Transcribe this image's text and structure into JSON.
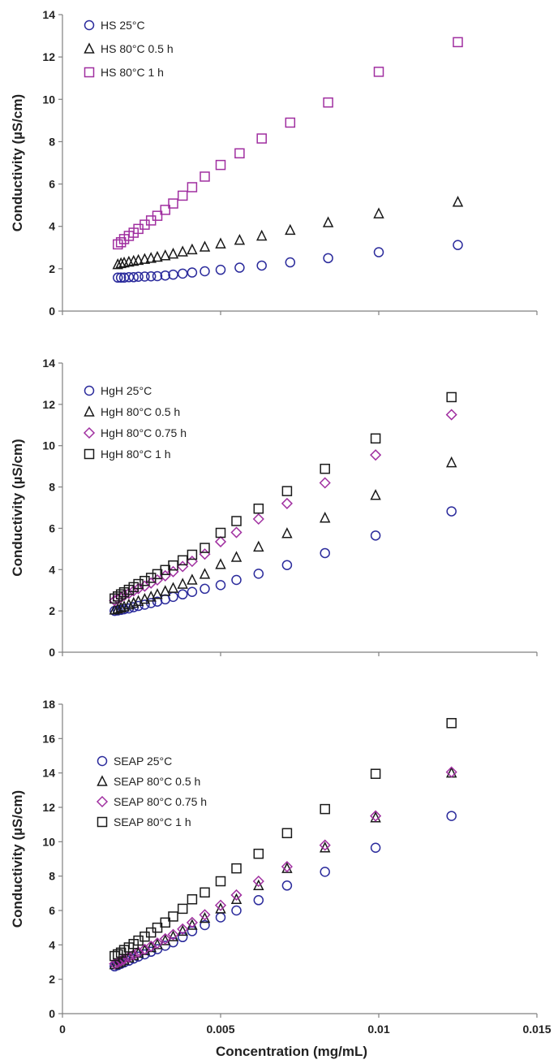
{
  "colors": {
    "blue": "#2b2b9c",
    "black": "#1a1a1a",
    "purple": "#a02fa0"
  },
  "chart_data": [
    {
      "type": "scatter",
      "title": "",
      "ylabel": "Conductivity (µS/cm)",
      "xlabel": "",
      "xlim": [
        0,
        0.015
      ],
      "ylim": [
        0,
        14
      ],
      "yticks": [
        0,
        2,
        4,
        6,
        8,
        10,
        12,
        14
      ],
      "xticks": [
        0,
        0.005,
        0.01,
        0.015
      ],
      "show_xtick_labels": false,
      "legend_position": "top-left",
      "series": [
        {
          "name": "HS 25°C",
          "marker": "circle",
          "color": "#2b2b9c",
          "x": [
            0.00175,
            0.00185,
            0.00195,
            0.0021,
            0.00225,
            0.0024,
            0.0026,
            0.0028,
            0.003,
            0.00325,
            0.0035,
            0.0038,
            0.0041,
            0.0045,
            0.005,
            0.0056,
            0.0063,
            0.0072,
            0.0084,
            0.01,
            0.0125
          ],
          "y": [
            1.58,
            1.58,
            1.58,
            1.6,
            1.6,
            1.62,
            1.63,
            1.64,
            1.65,
            1.68,
            1.72,
            1.77,
            1.82,
            1.88,
            1.95,
            2.05,
            2.15,
            2.3,
            2.5,
            2.78,
            3.12
          ]
        },
        {
          "name": "HS 80°C 0.5 h",
          "marker": "triangle",
          "color": "#1a1a1a",
          "x": [
            0.00175,
            0.00185,
            0.00195,
            0.0021,
            0.00225,
            0.0024,
            0.0026,
            0.0028,
            0.003,
            0.00325,
            0.0035,
            0.0038,
            0.0041,
            0.0045,
            0.005,
            0.0056,
            0.0063,
            0.0072,
            0.0084,
            0.01,
            0.0125
          ],
          "y": [
            2.2,
            2.25,
            2.28,
            2.32,
            2.36,
            2.4,
            2.45,
            2.5,
            2.55,
            2.62,
            2.7,
            2.8,
            2.9,
            3.03,
            3.18,
            3.35,
            3.55,
            3.82,
            4.18,
            4.6,
            5.15
          ]
        },
        {
          "name": "HS 80°C 1 h",
          "marker": "square",
          "color": "#a02fa0",
          "x": [
            0.00175,
            0.00185,
            0.00195,
            0.0021,
            0.00225,
            0.0024,
            0.0026,
            0.0028,
            0.003,
            0.00325,
            0.0035,
            0.0038,
            0.0041,
            0.0045,
            0.005,
            0.0056,
            0.0063,
            0.0072,
            0.0084,
            0.01,
            0.0125
          ],
          "y": [
            3.15,
            3.25,
            3.4,
            3.55,
            3.7,
            3.88,
            4.08,
            4.28,
            4.5,
            4.78,
            5.08,
            5.45,
            5.85,
            6.35,
            6.9,
            7.45,
            8.15,
            8.9,
            9.85,
            11.3,
            12.7
          ]
        }
      ]
    },
    {
      "type": "scatter",
      "title": "",
      "ylabel": "Conductivity (µS/cm)",
      "xlabel": "",
      "xlim": [
        0,
        0.015
      ],
      "ylim": [
        0,
        14
      ],
      "yticks": [
        0,
        2,
        4,
        6,
        8,
        10,
        12,
        14
      ],
      "xticks": [
        0,
        0.005,
        0.01,
        0.015
      ],
      "show_xtick_labels": false,
      "legend_position": "top-left",
      "series": [
        {
          "name": "HgH 25°C",
          "marker": "circle",
          "color": "#2b2b9c",
          "x": [
            0.00165,
            0.00175,
            0.00185,
            0.00195,
            0.0021,
            0.00225,
            0.0024,
            0.0026,
            0.0028,
            0.003,
            0.00325,
            0.0035,
            0.0038,
            0.0041,
            0.0045,
            0.005,
            0.0055,
            0.0062,
            0.0071,
            0.0083,
            0.0099,
            0.0123
          ],
          "y": [
            2.0,
            2.02,
            2.05,
            2.08,
            2.12,
            2.18,
            2.24,
            2.3,
            2.38,
            2.45,
            2.56,
            2.68,
            2.8,
            2.92,
            3.07,
            3.25,
            3.5,
            3.8,
            4.22,
            4.8,
            5.65,
            6.82
          ]
        },
        {
          "name": "HgH 80°C 0.5 h",
          "marker": "triangle",
          "color": "#1a1a1a",
          "x": [
            0.00165,
            0.00175,
            0.00185,
            0.00195,
            0.0021,
            0.00225,
            0.0024,
            0.0026,
            0.0028,
            0.003,
            0.00325,
            0.0035,
            0.0038,
            0.0041,
            0.0045,
            0.005,
            0.0055,
            0.0062,
            0.0071,
            0.0083,
            0.0099,
            0.0123
          ],
          "y": [
            2.05,
            2.1,
            2.15,
            2.2,
            2.3,
            2.38,
            2.47,
            2.57,
            2.68,
            2.8,
            2.95,
            3.1,
            3.3,
            3.5,
            3.78,
            4.25,
            4.6,
            5.1,
            5.75,
            6.5,
            7.6,
            9.18
          ]
        },
        {
          "name": "HgH 80°C 0.75 h",
          "marker": "diamond",
          "color": "#a02fa0",
          "x": [
            0.00165,
            0.00175,
            0.00185,
            0.00195,
            0.0021,
            0.00225,
            0.0024,
            0.0026,
            0.0028,
            0.003,
            0.00325,
            0.0035,
            0.0038,
            0.0041,
            0.0045,
            0.005,
            0.0055,
            0.0062,
            0.0071,
            0.0083,
            0.0099,
            0.0123
          ],
          "y": [
            2.5,
            2.58,
            2.66,
            2.75,
            2.85,
            2.97,
            3.08,
            3.2,
            3.35,
            3.5,
            3.7,
            3.9,
            4.15,
            4.4,
            4.75,
            5.35,
            5.8,
            6.45,
            7.2,
            8.2,
            9.55,
            11.5
          ]
        },
        {
          "name": "HgH 80°C 1 h",
          "marker": "square",
          "color": "#1a1a1a",
          "x": [
            0.00165,
            0.00175,
            0.00185,
            0.00195,
            0.0021,
            0.00225,
            0.0024,
            0.0026,
            0.0028,
            0.003,
            0.00325,
            0.0035,
            0.0038,
            0.0041,
            0.0045,
            0.005,
            0.0055,
            0.0062,
            0.0071,
            0.0083,
            0.0099,
            0.0123
          ],
          "y": [
            2.6,
            2.7,
            2.8,
            2.9,
            3.02,
            3.15,
            3.3,
            3.45,
            3.6,
            3.78,
            3.98,
            4.2,
            4.45,
            4.72,
            5.05,
            5.78,
            6.35,
            6.95,
            7.8,
            8.88,
            10.35,
            12.35
          ]
        }
      ]
    },
    {
      "type": "scatter",
      "title": "",
      "ylabel": "Conductivity (µS/cm)",
      "xlabel": "Concentration (mg/mL)",
      "xlim": [
        0,
        0.015
      ],
      "ylim": [
        0,
        18
      ],
      "yticks": [
        0,
        2,
        4,
        6,
        8,
        10,
        12,
        14,
        16,
        18
      ],
      "xticks": [
        0,
        0.005,
        0.01,
        0.015
      ],
      "xtick_labels": [
        "0",
        "0.005",
        "0.01",
        "0.015"
      ],
      "show_xtick_labels": true,
      "legend_position": "center-left",
      "series": [
        {
          "name": "SEAP 25°C",
          "marker": "circle",
          "color": "#2b2b9c",
          "x": [
            0.00165,
            0.00175,
            0.00185,
            0.00195,
            0.0021,
            0.00225,
            0.0024,
            0.0026,
            0.0028,
            0.003,
            0.00325,
            0.0035,
            0.0038,
            0.0041,
            0.0045,
            0.005,
            0.0055,
            0.0062,
            0.0071,
            0.0083,
            0.0099,
            0.0123
          ],
          "y": [
            2.75,
            2.82,
            2.9,
            2.98,
            3.08,
            3.2,
            3.32,
            3.45,
            3.6,
            3.75,
            3.95,
            4.15,
            4.45,
            4.8,
            5.15,
            5.6,
            6.0,
            6.6,
            7.45,
            8.25,
            9.65,
            11.5
          ]
        },
        {
          "name": "SEAP 80°C 0.5 h",
          "marker": "triangle",
          "color": "#1a1a1a",
          "x": [
            0.00165,
            0.00175,
            0.00185,
            0.00195,
            0.0021,
            0.00225,
            0.0024,
            0.0026,
            0.0028,
            0.003,
            0.00325,
            0.0035,
            0.0038,
            0.0041,
            0.0045,
            0.005,
            0.0055,
            0.0062,
            0.0071,
            0.0083,
            0.0099,
            0.0123
          ],
          "y": [
            2.85,
            2.93,
            3.02,
            3.12,
            3.25,
            3.38,
            3.52,
            3.68,
            3.85,
            4.02,
            4.25,
            4.48,
            4.8,
            5.15,
            5.55,
            6.1,
            6.65,
            7.45,
            8.45,
            9.65,
            11.4,
            14.0
          ]
        },
        {
          "name": "SEAP 80°C 0.75 h",
          "marker": "diamond",
          "color": "#a02fa0",
          "x": [
            0.00165,
            0.00175,
            0.00185,
            0.00195,
            0.0021,
            0.00225,
            0.0024,
            0.0026,
            0.0028,
            0.003,
            0.00325,
            0.0035,
            0.0038,
            0.0041,
            0.0045,
            0.005,
            0.0055,
            0.0062,
            0.0071,
            0.0083,
            0.0099,
            0.0123
          ],
          "y": [
            2.9,
            2.98,
            3.07,
            3.17,
            3.3,
            3.43,
            3.58,
            3.74,
            3.92,
            4.1,
            4.35,
            4.6,
            4.92,
            5.3,
            5.75,
            6.3,
            6.9,
            7.7,
            8.55,
            9.8,
            11.5,
            14.05
          ]
        },
        {
          "name": "SEAP 80°C 1 h",
          "marker": "square",
          "color": "#1a1a1a",
          "x": [
            0.00165,
            0.00175,
            0.00185,
            0.00195,
            0.0021,
            0.00225,
            0.0024,
            0.0026,
            0.0028,
            0.003,
            0.00325,
            0.0035,
            0.0038,
            0.0041,
            0.0045,
            0.005,
            0.0055,
            0.0062,
            0.0071,
            0.0083,
            0.0099,
            0.0123
          ],
          "y": [
            3.35,
            3.45,
            3.55,
            3.7,
            3.85,
            4.05,
            4.25,
            4.48,
            4.72,
            5.0,
            5.3,
            5.65,
            6.1,
            6.65,
            7.05,
            7.7,
            8.45,
            9.3,
            10.5,
            11.9,
            13.95,
            16.9
          ]
        }
      ]
    }
  ]
}
